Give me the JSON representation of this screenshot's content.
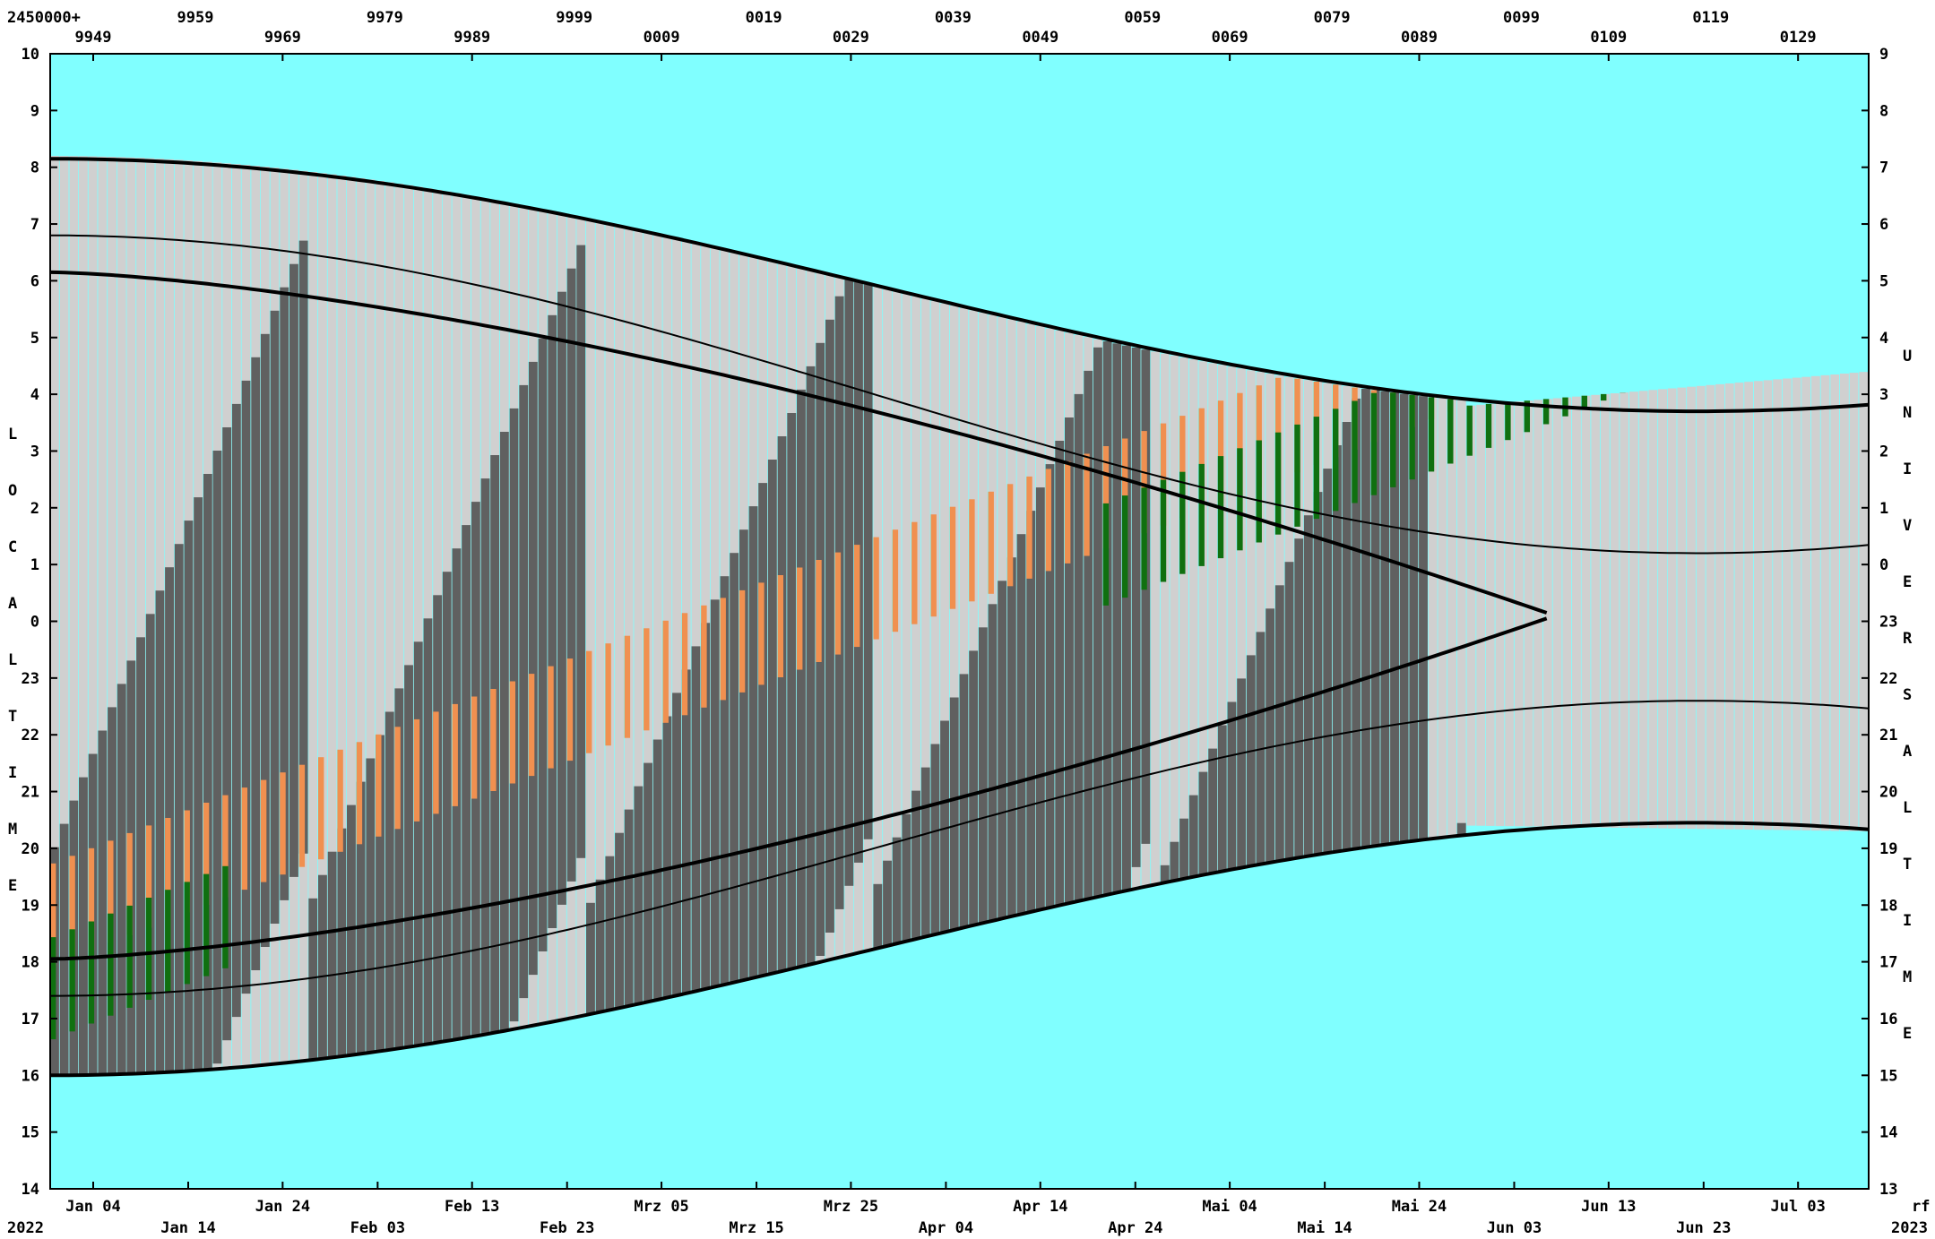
{
  "chart_data": {
    "type": "heatmap",
    "title": "",
    "jd_prefix": "2450000+",
    "year_start": "2022",
    "year_end": "2023",
    "corner_label": "rf",
    "left_axis_label": "LOCALTIME",
    "right_axis_label": "UNIVERSALTIME",
    "left_ticks": [
      "10",
      "9",
      "8",
      "7",
      "6",
      "5",
      "4",
      "3",
      "2",
      "1",
      "0",
      "23",
      "22",
      "21",
      "20",
      "19",
      "18",
      "17",
      "16",
      "15",
      "14"
    ],
    "right_ticks": [
      "9",
      "8",
      "7",
      "6",
      "5",
      "4",
      "3",
      "2",
      "1",
      "0",
      "23",
      "22",
      "21",
      "20",
      "19",
      "18",
      "17",
      "16",
      "15",
      "14",
      "13"
    ],
    "jd_top_row": [
      "9959",
      "9979",
      "9999",
      "0019",
      "0039",
      "0059",
      "0079",
      "0099",
      "0119"
    ],
    "jd_bottom_row": [
      "9949",
      "9969",
      "9989",
      "0009",
      "0029",
      "0049",
      "0069",
      "0089",
      "0109",
      "0129"
    ],
    "date_upper_row": [
      "Jan 04",
      "Jan 24",
      "Feb 13",
      "Mrz 05",
      "Mrz 25",
      "Apr 14",
      "Mai 04",
      "Mai 24",
      "Jun 13",
      "Jul 03"
    ],
    "date_lower_row": [
      "Jan 14",
      "Feb 03",
      "Feb 23",
      "Mrz 15",
      "Apr 04",
      "Apr 24",
      "Mai 14",
      "Jun 03",
      "Jun 23"
    ],
    "x_range_days": [
      0,
      192
    ],
    "y_range_hours": [
      14,
      34
    ],
    "colors": {
      "day": "#80ffff",
      "night": "#d0d0d0",
      "moon_up": "#606060",
      "civil": "#40a0c0",
      "nautical": "#6070a0",
      "orange": "#f09050",
      "dark_green": "#107010",
      "light_green": "#a0f090"
    }
  }
}
